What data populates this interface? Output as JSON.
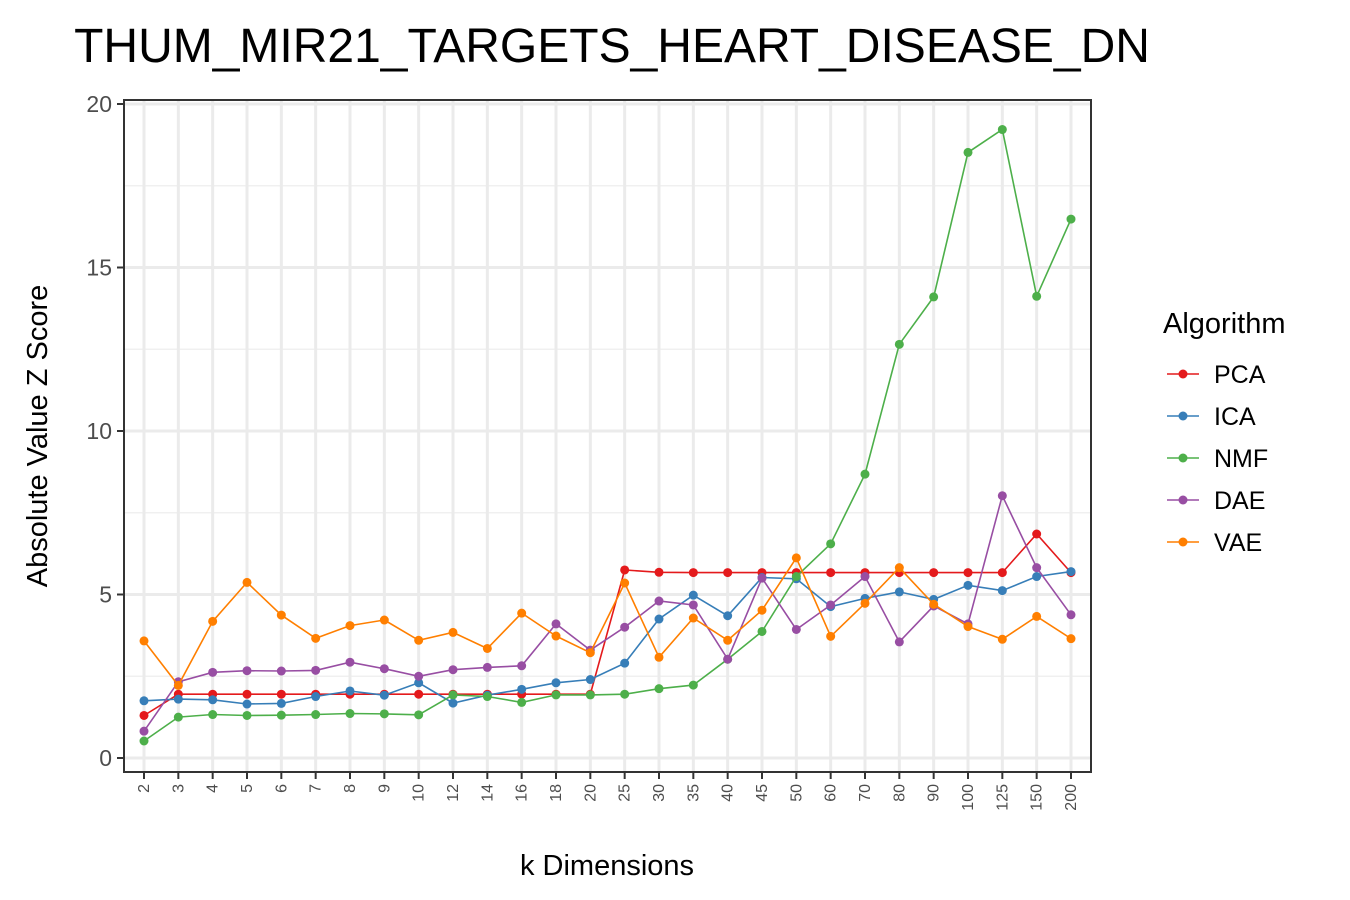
{
  "chart_data": {
    "type": "line",
    "title": "THUM_MIR21_TARGETS_HEART_DISEASE_DN",
    "xlabel": "k Dimensions",
    "ylabel": "Absolute Value Z Score",
    "ylim": [
      -0.5,
      20
    ],
    "yticks": [
      0,
      5,
      10,
      15,
      20
    ],
    "grid": true,
    "legend_title": "Algorithm",
    "legend_position": "right",
    "categories": [
      "2",
      "3",
      "4",
      "5",
      "6",
      "7",
      "8",
      "9",
      "10",
      "12",
      "14",
      "16",
      "18",
      "20",
      "25",
      "30",
      "35",
      "40",
      "45",
      "50",
      "60",
      "70",
      "80",
      "90",
      "100",
      "125",
      "150",
      "200"
    ],
    "series": [
      {
        "name": "PCA",
        "color": "#e41a1c",
        "values": [
          1.3,
          1.95,
          1.95,
          1.95,
          1.95,
          1.95,
          1.95,
          1.95,
          1.95,
          1.95,
          1.95,
          1.95,
          1.95,
          1.95,
          5.75,
          5.68,
          5.67,
          5.67,
          5.67,
          5.67,
          5.67,
          5.67,
          5.67,
          5.67,
          5.67,
          5.67,
          6.85,
          5.67
        ]
      },
      {
        "name": "ICA",
        "color": "#377eb8",
        "values": [
          1.75,
          1.8,
          1.78,
          1.65,
          1.67,
          1.88,
          2.05,
          1.92,
          2.3,
          1.68,
          1.92,
          2.1,
          2.3,
          2.4,
          2.9,
          4.25,
          4.98,
          4.35,
          5.52,
          5.48,
          4.63,
          4.88,
          5.08,
          4.85,
          5.28,
          5.12,
          5.55,
          5.7
        ]
      },
      {
        "name": "NMF",
        "color": "#4daf4a",
        "values": [
          0.52,
          1.25,
          1.33,
          1.3,
          1.31,
          1.33,
          1.36,
          1.35,
          1.32,
          1.93,
          1.88,
          1.7,
          1.93,
          1.93,
          1.95,
          2.12,
          2.23,
          3.02,
          3.87,
          5.55,
          6.55,
          8.68,
          12.65,
          14.1,
          18.52,
          19.22,
          14.12,
          16.48
        ]
      },
      {
        "name": "DAE",
        "color": "#984ea3",
        "values": [
          0.82,
          2.33,
          2.62,
          2.67,
          2.66,
          2.68,
          2.93,
          2.73,
          2.5,
          2.7,
          2.77,
          2.82,
          4.1,
          3.3,
          4,
          4.8,
          4.68,
          3.02,
          5.5,
          3.93,
          4.68,
          5.55,
          3.55,
          4.65,
          4.1,
          8.02,
          5.82,
          4.38
        ]
      },
      {
        "name": "VAE",
        "color": "#ff7f00",
        "values": [
          3.58,
          2.22,
          4.18,
          5.37,
          4.37,
          3.66,
          4.05,
          4.22,
          3.6,
          3.84,
          3.35,
          4.43,
          3.73,
          3.22,
          5.35,
          3.08,
          4.28,
          3.6,
          4.52,
          6.12,
          3.72,
          4.73,
          5.82,
          4.7,
          4.02,
          3.63,
          4.33,
          3.65
        ]
      }
    ]
  }
}
